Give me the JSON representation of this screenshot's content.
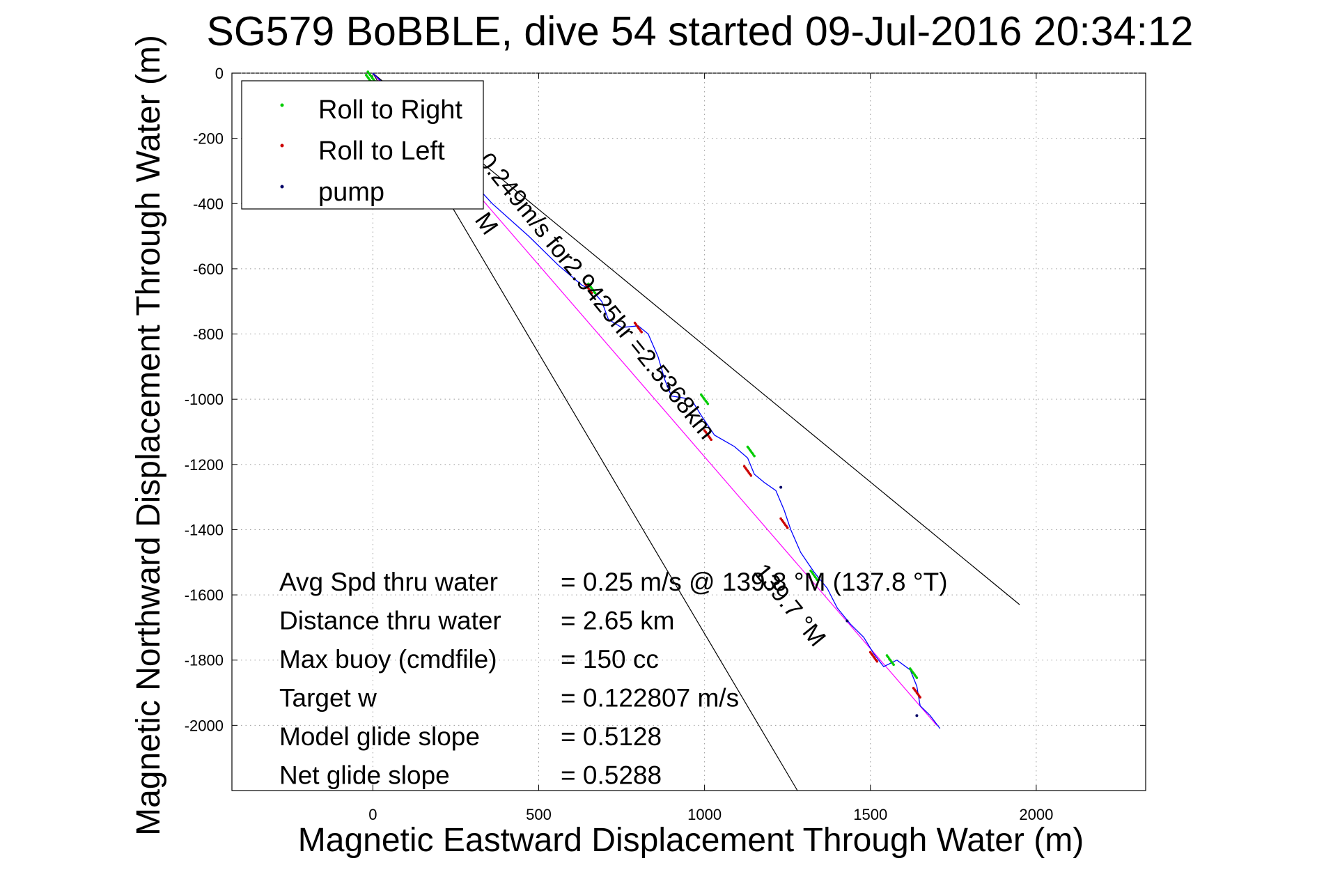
{
  "chart_data": {
    "type": "scatter",
    "title": "SG579 BoBBLE, dive 54 started 09-Jul-2016 20:34:12",
    "xlabel": "Magnetic Eastward Displacement Through Water (m)",
    "ylabel": "Magnetic Northward Displacement Through Water (m)",
    "xlim": [
      -425,
      2330
    ],
    "ylim": [
      -2200,
      0
    ],
    "xticks": [
      0,
      500,
      1000,
      1500,
      2000
    ],
    "yticks": [
      0,
      -200,
      -400,
      -600,
      -800,
      -1000,
      -1200,
      -1400,
      -1600,
      -1800,
      -2000
    ],
    "grid": true,
    "legend_position": "top-left",
    "legend": [
      {
        "label": "Roll to Right",
        "color": "#00cc00"
      },
      {
        "label": "Roll to Left",
        "color": "#cc0000"
      },
      {
        "label": "pump",
        "color": "#000066"
      }
    ],
    "track": {
      "color": "#0000ff",
      "points": [
        [
          0,
          0
        ],
        [
          60,
          -60
        ],
        [
          150,
          -170
        ],
        [
          260,
          -290
        ],
        [
          360,
          -400
        ],
        [
          470,
          -500
        ],
        [
          560,
          -590
        ],
        [
          630,
          -650
        ],
        [
          660,
          -665
        ],
        [
          690,
          -700
        ],
        [
          710,
          -755
        ],
        [
          750,
          -780
        ],
        [
          800,
          -775
        ],
        [
          830,
          -800
        ],
        [
          860,
          -870
        ],
        [
          880,
          -940
        ],
        [
          900,
          -990
        ],
        [
          960,
          -1000
        ],
        [
          990,
          -1050
        ],
        [
          1030,
          -1110
        ],
        [
          1090,
          -1145
        ],
        [
          1130,
          -1180
        ],
        [
          1150,
          -1230
        ],
        [
          1180,
          -1255
        ],
        [
          1215,
          -1280
        ],
        [
          1240,
          -1340
        ],
        [
          1260,
          -1400
        ],
        [
          1290,
          -1470
        ],
        [
          1330,
          -1530
        ],
        [
          1370,
          -1580
        ],
        [
          1400,
          -1640
        ],
        [
          1440,
          -1690
        ],
        [
          1480,
          -1730
        ],
        [
          1510,
          -1780
        ],
        [
          1540,
          -1820
        ],
        [
          1580,
          -1800
        ],
        [
          1620,
          -1830
        ],
        [
          1640,
          -1880
        ],
        [
          1650,
          -1940
        ],
        [
          1680,
          -1970
        ],
        [
          1710,
          -2010
        ]
      ]
    },
    "reference_line": {
      "color": "#ff00ff",
      "points": [
        [
          0,
          0
        ],
        [
          1700,
          -2000
        ]
      ]
    },
    "bounding_lines": {
      "color": "#000000",
      "lines": [
        [
          [
            0,
            0
          ],
          [
            1950,
            -1630
          ]
        ],
        [
          [
            0,
            0
          ],
          [
            1280,
            -2200
          ]
        ]
      ]
    },
    "roll_right_points": [
      [
        -10,
        -20
      ],
      [
        -5,
        -10
      ],
      [
        660,
        -660
      ],
      [
        1000,
        -1000
      ],
      [
        1140,
        -1160
      ],
      [
        1330,
        -1540
      ],
      [
        1560,
        -1800
      ],
      [
        1630,
        -1840
      ]
    ],
    "roll_left_points": [
      [
        650,
        -660
      ],
      [
        800,
        -780
      ],
      [
        1010,
        -1110
      ],
      [
        1130,
        -1220
      ],
      [
        1240,
        -1380
      ],
      [
        1510,
        -1790
      ],
      [
        1640,
        -1900
      ]
    ],
    "pump_points": [
      [
        880,
        -930
      ],
      [
        890,
        -960
      ],
      [
        1230,
        -1270
      ],
      [
        1430,
        -1680
      ],
      [
        1640,
        -1970
      ]
    ],
    "annotations": [
      {
        "text": "M",
        "x": 305,
        "y": -450,
        "angle": 55
      },
      {
        "text": "0.249m/s for2.9425hr =2.5368km",
        "x": 315,
        "y": -270,
        "angle": 51
      },
      {
        "text": "139.7 °M",
        "x": 1145,
        "y": -1530,
        "angle": 51
      }
    ],
    "stats": [
      {
        "label": "Avg Spd thru water",
        "value": "=  0.25 m/s @ 139.8 °M (137.8 °T)"
      },
      {
        "label": "Distance thru water",
        "value": "=  2.65 km"
      },
      {
        "label": "Max buoy (cmdfile)",
        "value": "= 150 cc"
      },
      {
        "label": "Target w",
        "value": "= 0.122807 m/s"
      },
      {
        "label": "Model glide slope",
        "value": "= 0.5128"
      },
      {
        "label": "Net glide slope",
        "value": "= 0.5288"
      }
    ]
  }
}
